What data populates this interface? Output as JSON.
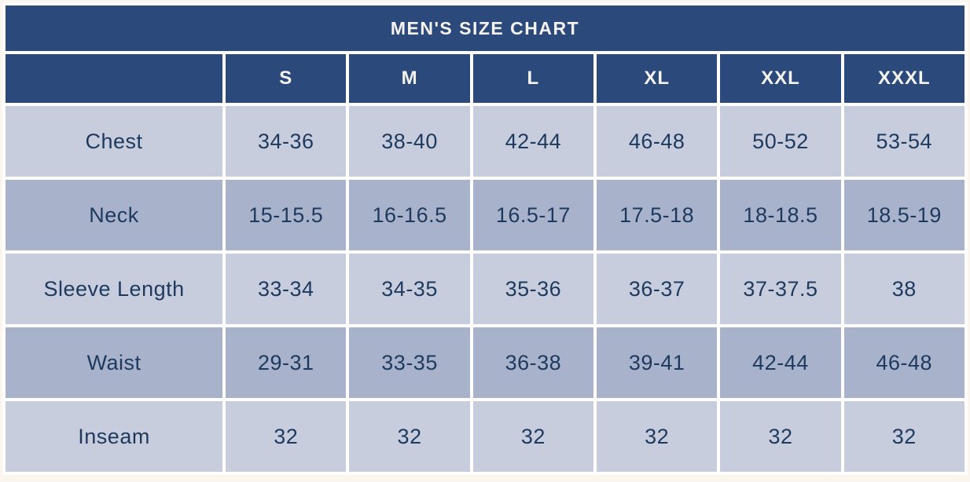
{
  "chart_data": {
    "type": "table",
    "title": "MEN'S SIZE CHART",
    "columns": [
      "S",
      "M",
      "L",
      "XL",
      "XXL",
      "XXXL"
    ],
    "rows": [
      {
        "label": "Chest",
        "values": [
          "34-36",
          "38-40",
          "42-44",
          "46-48",
          "50-52",
          "53-54"
        ]
      },
      {
        "label": "Neck",
        "values": [
          "15-15.5",
          "16-16.5",
          "16.5-17",
          "17.5-18",
          "18-18.5",
          "18.5-19"
        ]
      },
      {
        "label": "Sleeve Length",
        "values": [
          "33-34",
          "34-35",
          "35-36",
          "36-37",
          "37-37.5",
          "38"
        ]
      },
      {
        "label": "Waist",
        "values": [
          "29-31",
          "33-35",
          "36-38",
          "39-41",
          "42-44",
          "46-48"
        ]
      },
      {
        "label": "Inseam",
        "values": [
          "32",
          "32",
          "32",
          "32",
          "32",
          "32"
        ]
      }
    ],
    "layout": {
      "grid": "white gridlines, alternating row shading",
      "legend": "none"
    },
    "colors": {
      "header_bg": "#2b4a7b",
      "header_text": "#f5f3ee",
      "row_light_bg": "#c8cdde",
      "row_dark_bg": "#a9b2cb",
      "cell_text": "#1d3a5e",
      "gridline": "#ffffff",
      "page_bg": "#faf6ee"
    }
  }
}
